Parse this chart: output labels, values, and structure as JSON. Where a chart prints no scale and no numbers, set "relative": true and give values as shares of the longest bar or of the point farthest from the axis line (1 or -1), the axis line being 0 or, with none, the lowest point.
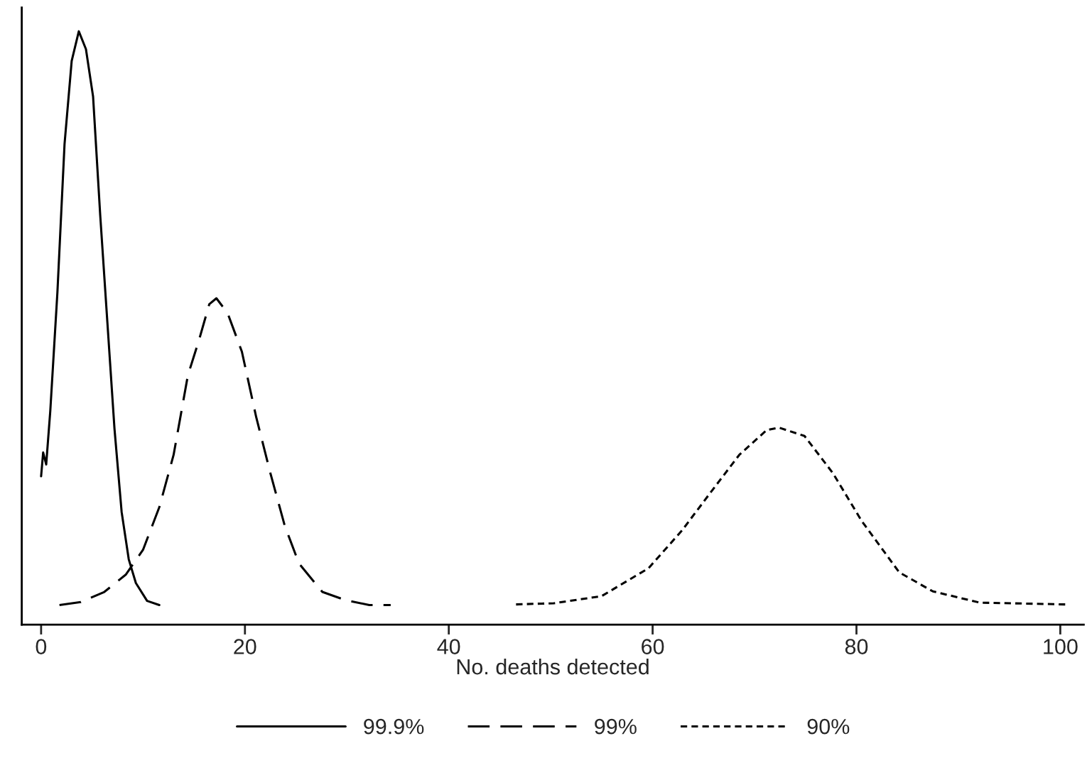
{
  "chart_data": {
    "type": "line",
    "relative": true,
    "xlabel": "No. deaths detected",
    "xlim": [
      -1.9,
      102.3
    ],
    "xticks": [
      0,
      20,
      40,
      60,
      80,
      100
    ],
    "grid": false,
    "legend": "bottom",
    "marker": "none",
    "series": [
      {
        "name": "99.9%",
        "color": "#000000",
        "line_style": "solid",
        "x": [
          0.0,
          0.2,
          0.5,
          0.9,
          1.6,
          2.3,
          3.0,
          3.7,
          4.4,
          5.1,
          5.8,
          6.5,
          7.2,
          7.9,
          8.6,
          9.3,
          10.4,
          11.6
        ],
        "values": [
          0.25,
          0.29,
          0.27,
          0.36,
          0.56,
          0.81,
          0.95,
          1.0,
          0.97,
          0.89,
          0.69,
          0.51,
          0.33,
          0.19,
          0.11,
          0.07,
          0.04,
          0.033
        ]
      },
      {
        "name": "99%",
        "color": "#000000",
        "line_style": "dashed",
        "x": [
          1.8,
          3.9,
          6.2,
          8.3,
          10.0,
          11.6,
          13.0,
          14.4,
          15.5,
          16.5,
          17.2,
          18.3,
          19.7,
          21.1,
          22.5,
          23.9,
          25.3,
          27.6,
          29.9,
          32.2,
          34.3
        ],
        "values": [
          0.033,
          0.038,
          0.055,
          0.084,
          0.126,
          0.198,
          0.286,
          0.42,
          0.48,
          0.54,
          0.55,
          0.525,
          0.46,
          0.35,
          0.255,
          0.167,
          0.103,
          0.055,
          0.041,
          0.033,
          0.033
        ]
      },
      {
        "name": "90%",
        "color": "#000000",
        "line_style": "dotted",
        "x": [
          46.6,
          50.3,
          55.0,
          59.6,
          62.9,
          65.7,
          68.5,
          71.2,
          72.4,
          74.9,
          77.7,
          80.5,
          84.2,
          87.5,
          92.1,
          100.5
        ],
        "values": [
          0.034,
          0.036,
          0.048,
          0.095,
          0.159,
          0.223,
          0.286,
          0.328,
          0.332,
          0.318,
          0.255,
          0.175,
          0.088,
          0.056,
          0.037,
          0.034
        ]
      }
    ]
  }
}
